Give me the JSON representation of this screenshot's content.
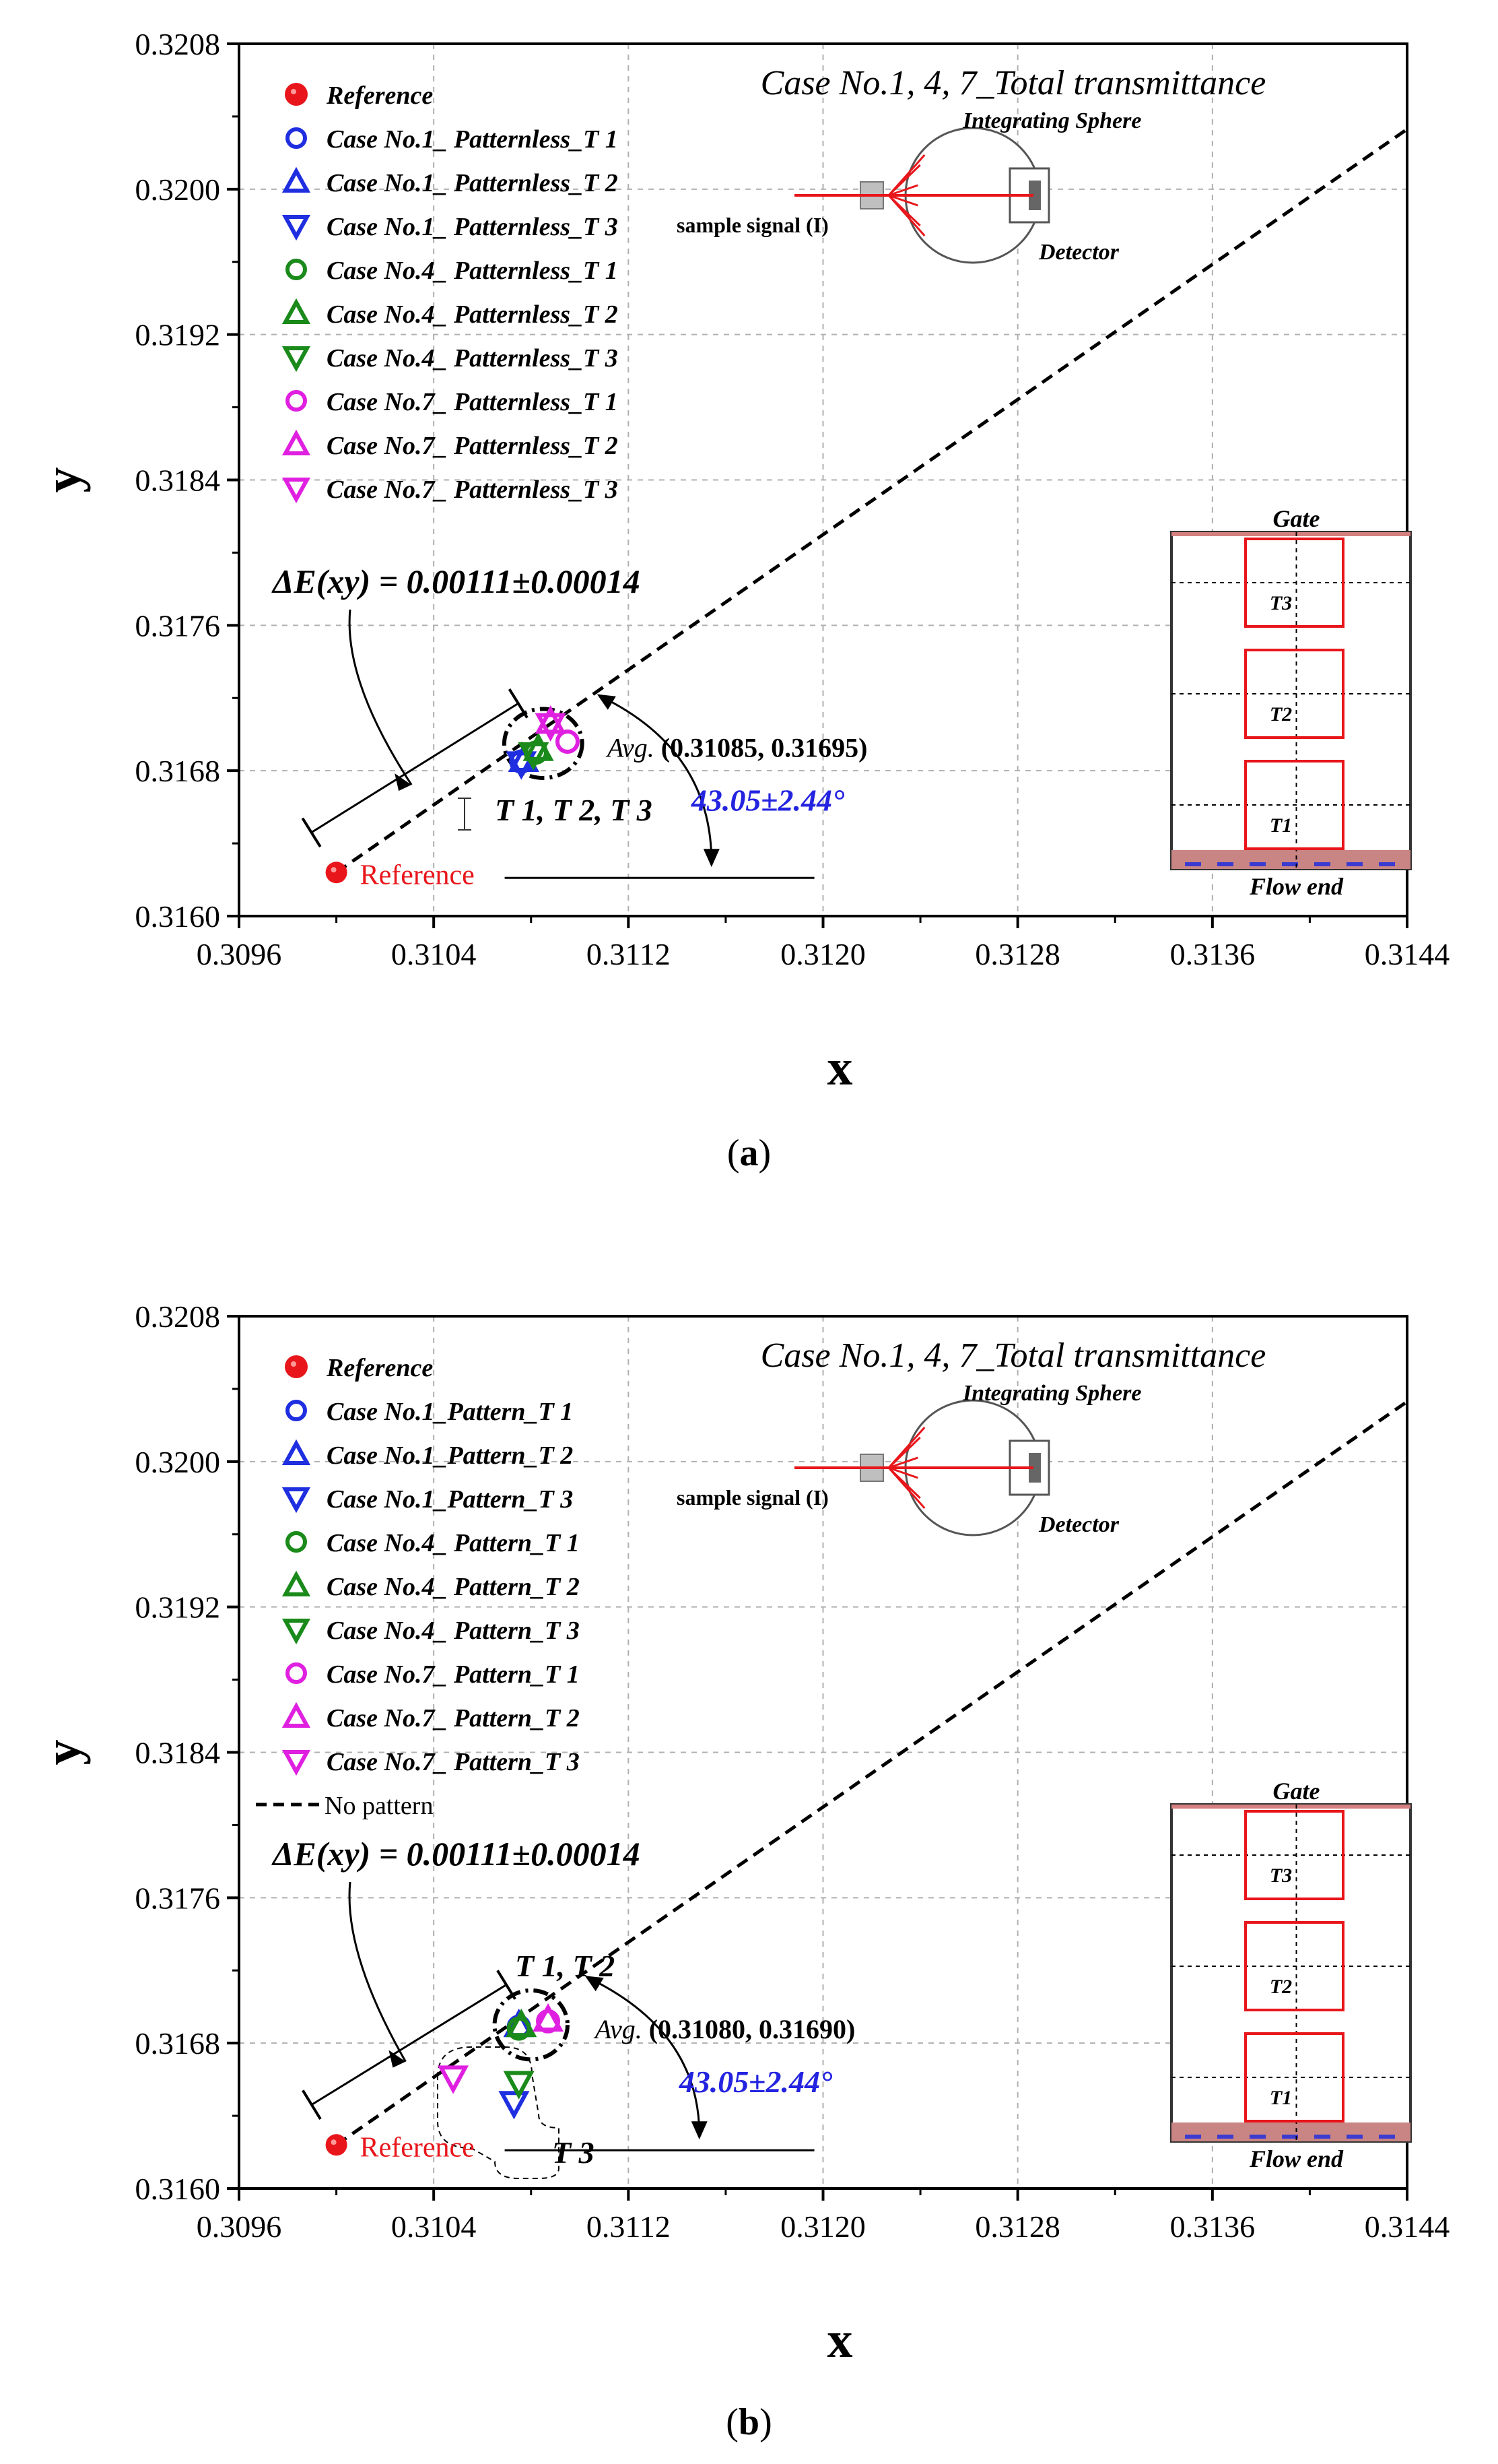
{
  "chart_data": [
    {
      "panel": "a",
      "caption_letter": "a",
      "type": "scatter",
      "title": "Case No.1, 4, 7_Total transmittance",
      "xlabel": "x",
      "ylabel": "y",
      "xlim": [
        0.3096,
        0.3144
      ],
      "ylim": [
        0.316,
        0.3208
      ],
      "xticks": [
        "0.3096",
        "0.3104",
        "0.3112",
        "0.3120",
        "0.3128",
        "0.3136",
        "0.3144"
      ],
      "yticks": [
        "0.3160",
        "0.3168",
        "0.3176",
        "0.3184",
        "0.3192",
        "0.3200",
        "0.3208"
      ],
      "grid": true,
      "legend": [
        {
          "label": "Reference",
          "marker": "dot",
          "color": "#e8161b"
        },
        {
          "label": "Case No.1_ Patternless_T 1",
          "marker": "circle",
          "color": "#1f2fe0"
        },
        {
          "label": "Case No.1_ Patternless_T 2",
          "marker": "triangle-up",
          "color": "#1f2fe0"
        },
        {
          "label": "Case No.1_ Patternless_T 3",
          "marker": "triangle-down",
          "color": "#1f2fe0"
        },
        {
          "label": "Case No.4_ Patternless_T 1",
          "marker": "circle",
          "color": "#1a8a1a"
        },
        {
          "label": "Case No.4_ Patternless_T 2",
          "marker": "triangle-up",
          "color": "#1a8a1a"
        },
        {
          "label": "Case No.4_ Patternless_T 3",
          "marker": "triangle-down",
          "color": "#1a8a1a"
        },
        {
          "label": "Case No.7_ Patternless_T 1",
          "marker": "circle",
          "color": "#e020e0"
        },
        {
          "label": "Case No.7_ Patternless_T 2",
          "marker": "triangle-up",
          "color": "#e020e0"
        },
        {
          "label": "Case No.7_ Patternless_T 3",
          "marker": "triangle-down",
          "color": "#e020e0"
        }
      ],
      "reference": {
        "x": 0.31,
        "y": 0.31624,
        "label": "Reference"
      },
      "points": [
        {
          "series": 1,
          "x": 0.31076,
          "y": 0.31685
        },
        {
          "series": 2,
          "x": 0.31077,
          "y": 0.31686
        },
        {
          "series": 3,
          "x": 0.31076,
          "y": 0.31684
        },
        {
          "series": 4,
          "x": 0.31082,
          "y": 0.3169
        },
        {
          "series": 5,
          "x": 0.31083,
          "y": 0.31692
        },
        {
          "series": 6,
          "x": 0.31081,
          "y": 0.31689
        },
        {
          "series": 7,
          "x": 0.31095,
          "y": 0.31696
        },
        {
          "series": 8,
          "x": 0.31088,
          "y": 0.31707
        },
        {
          "series": 9,
          "x": 0.31088,
          "y": 0.31705
        }
      ],
      "dashed_line": [
        [
          0.31,
          0.31624
        ],
        [
          0.3144,
          0.32033
        ]
      ],
      "ellipse": {
        "cx": 0.31085,
        "cy": 0.31695,
        "rx": 0.00016,
        "ry": 0.00019
      },
      "deltaE": "ΔE(xy) = 0.00111±0.00014",
      "avg_prefix": "Avg.",
      "avg_value": "(0.31085, 0.31695)",
      "angle_label": "43.05±2.44°",
      "points_label": "T 1, T 2, T 3",
      "no_pattern_label": "",
      "inset_sphere": {
        "title": "Integrating Sphere",
        "signal": "sample signal (I)",
        "detector": "Detector"
      },
      "inset_mold": {
        "gate": "Gate",
        "t3": "T3",
        "t2": "T2",
        "t1": "T1",
        "flow_end": "Flow end"
      }
    },
    {
      "panel": "b",
      "caption_letter": "b",
      "type": "scatter",
      "title": "Case No.1, 4, 7_Total transmittance",
      "xlabel": "x",
      "ylabel": "y",
      "xlim": [
        0.3096,
        0.3144
      ],
      "ylim": [
        0.316,
        0.3208
      ],
      "xticks": [
        "0.3096",
        "0.3104",
        "0.3112",
        "0.3120",
        "0.3128",
        "0.3136",
        "0.3144"
      ],
      "yticks": [
        "0.3160",
        "0.3168",
        "0.3176",
        "0.3184",
        "0.3192",
        "0.3200",
        "0.3208"
      ],
      "grid": true,
      "legend": [
        {
          "label": "Reference",
          "marker": "dot",
          "color": "#e8161b"
        },
        {
          "label": "Case No.1_Pattern_T 1",
          "marker": "circle",
          "color": "#1f2fe0"
        },
        {
          "label": "Case No.1_Pattern_T 2",
          "marker": "triangle-up",
          "color": "#1f2fe0"
        },
        {
          "label": "Case No.1_Pattern_T 3",
          "marker": "triangle-down",
          "color": "#1f2fe0"
        },
        {
          "label": "Case No.4_ Pattern_T 1",
          "marker": "circle",
          "color": "#1a8a1a"
        },
        {
          "label": "Case No.4_ Pattern_T 2",
          "marker": "triangle-up",
          "color": "#1a8a1a"
        },
        {
          "label": "Case No.4_ Pattern_T 3",
          "marker": "triangle-down",
          "color": "#1a8a1a"
        },
        {
          "label": "Case No.7_ Pattern_T 1",
          "marker": "circle",
          "color": "#e020e0"
        },
        {
          "label": "Case No.7_ Pattern_T 2",
          "marker": "triangle-up",
          "color": "#e020e0"
        },
        {
          "label": "Case No.7_ Pattern_T 3",
          "marker": "triangle-down",
          "color": "#e020e0"
        }
      ],
      "reference": {
        "x": 0.31,
        "y": 0.31624,
        "label": "Reference"
      },
      "points": [
        {
          "series": 1,
          "x": 0.31075,
          "y": 0.31689
        },
        {
          "series": 2,
          "x": 0.31075,
          "y": 0.3169
        },
        {
          "series": 3,
          "x": 0.31073,
          "y": 0.31647
        },
        {
          "series": 4,
          "x": 0.31075,
          "y": 0.31688
        },
        {
          "series": 5,
          "x": 0.31076,
          "y": 0.3169
        },
        {
          "series": 6,
          "x": 0.31075,
          "y": 0.31658
        },
        {
          "series": 7,
          "x": 0.31087,
          "y": 0.31692
        },
        {
          "series": 8,
          "x": 0.31087,
          "y": 0.31693
        },
        {
          "series": 9,
          "x": 0.31048,
          "y": 0.31661
        }
      ],
      "dashed_line": [
        [
          0.31,
          0.31624
        ],
        [
          0.3144,
          0.32033
        ]
      ],
      "ellipse": {
        "cx": 0.3108,
        "cy": 0.3169,
        "rx": 0.00015,
        "ry": 0.00019
      },
      "deltaE": "ΔE(xy) = 0.00111±0.00014",
      "avg_prefix": "Avg.",
      "avg_value": "(0.31080, 0.31690)",
      "angle_label": "43.05±2.44°",
      "points_label": "T 1, T 2",
      "t3_label": "T 3",
      "no_pattern_label": "No pattern",
      "inset_sphere": {
        "title": "Integrating Sphere",
        "signal": "sample signal (I)",
        "detector": "Detector"
      },
      "inset_mold": {
        "gate": "Gate",
        "t3": "T3",
        "t2": "T2",
        "t1": "T1",
        "flow_end": "Flow end"
      }
    }
  ]
}
